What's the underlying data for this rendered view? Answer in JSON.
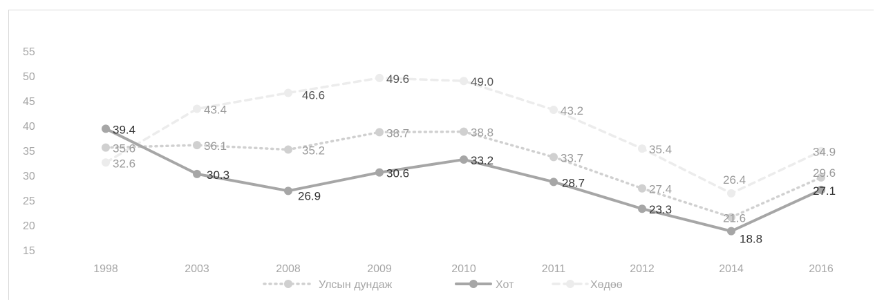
{
  "chart_data": {
    "type": "line",
    "title": "",
    "xlabel": "",
    "ylabel": "",
    "categories": [
      "1998",
      "2003",
      "2008",
      "2009",
      "2010",
      "2011",
      "2012",
      "2014",
      "2016"
    ],
    "ylim": [
      15,
      55
    ],
    "yticks": [
      15,
      20,
      25,
      30,
      35,
      40,
      45,
      50,
      55
    ],
    "grid": false,
    "legend_position": "bottom",
    "series": [
      {
        "name": "Улсын дундаж",
        "values": [
          35.6,
          36.1,
          35.2,
          38.7,
          38.8,
          33.7,
          27.4,
          21.6,
          29.6
        ],
        "labels": [
          "35.6",
          "36.1",
          "35.2",
          "38.7",
          "38.8",
          "33.7",
          "27.4",
          "21.6",
          "29.6"
        ],
        "color": "#d0d0d0",
        "style": "dotted"
      },
      {
        "name": "Хот",
        "values": [
          39.4,
          30.3,
          26.9,
          30.6,
          33.2,
          28.7,
          23.3,
          18.8,
          27.1
        ],
        "labels": [
          "39.4",
          "30.3",
          "26.9",
          "30.6",
          "33.2",
          "28.7",
          "23.3",
          "18.8",
          "27.1"
        ],
        "color": "#a6a6a6",
        "style": "solid"
      },
      {
        "name": "Хөдөө",
        "values": [
          32.6,
          43.4,
          46.6,
          49.6,
          49.0,
          43.2,
          35.4,
          26.4,
          34.9
        ],
        "labels": [
          "32.6",
          "43.4",
          "46.6",
          "49.6",
          "49.0",
          "43.2",
          "35.4",
          "26.4",
          "34.9"
        ],
        "color": "#ececec",
        "style": "dashed"
      }
    ]
  }
}
